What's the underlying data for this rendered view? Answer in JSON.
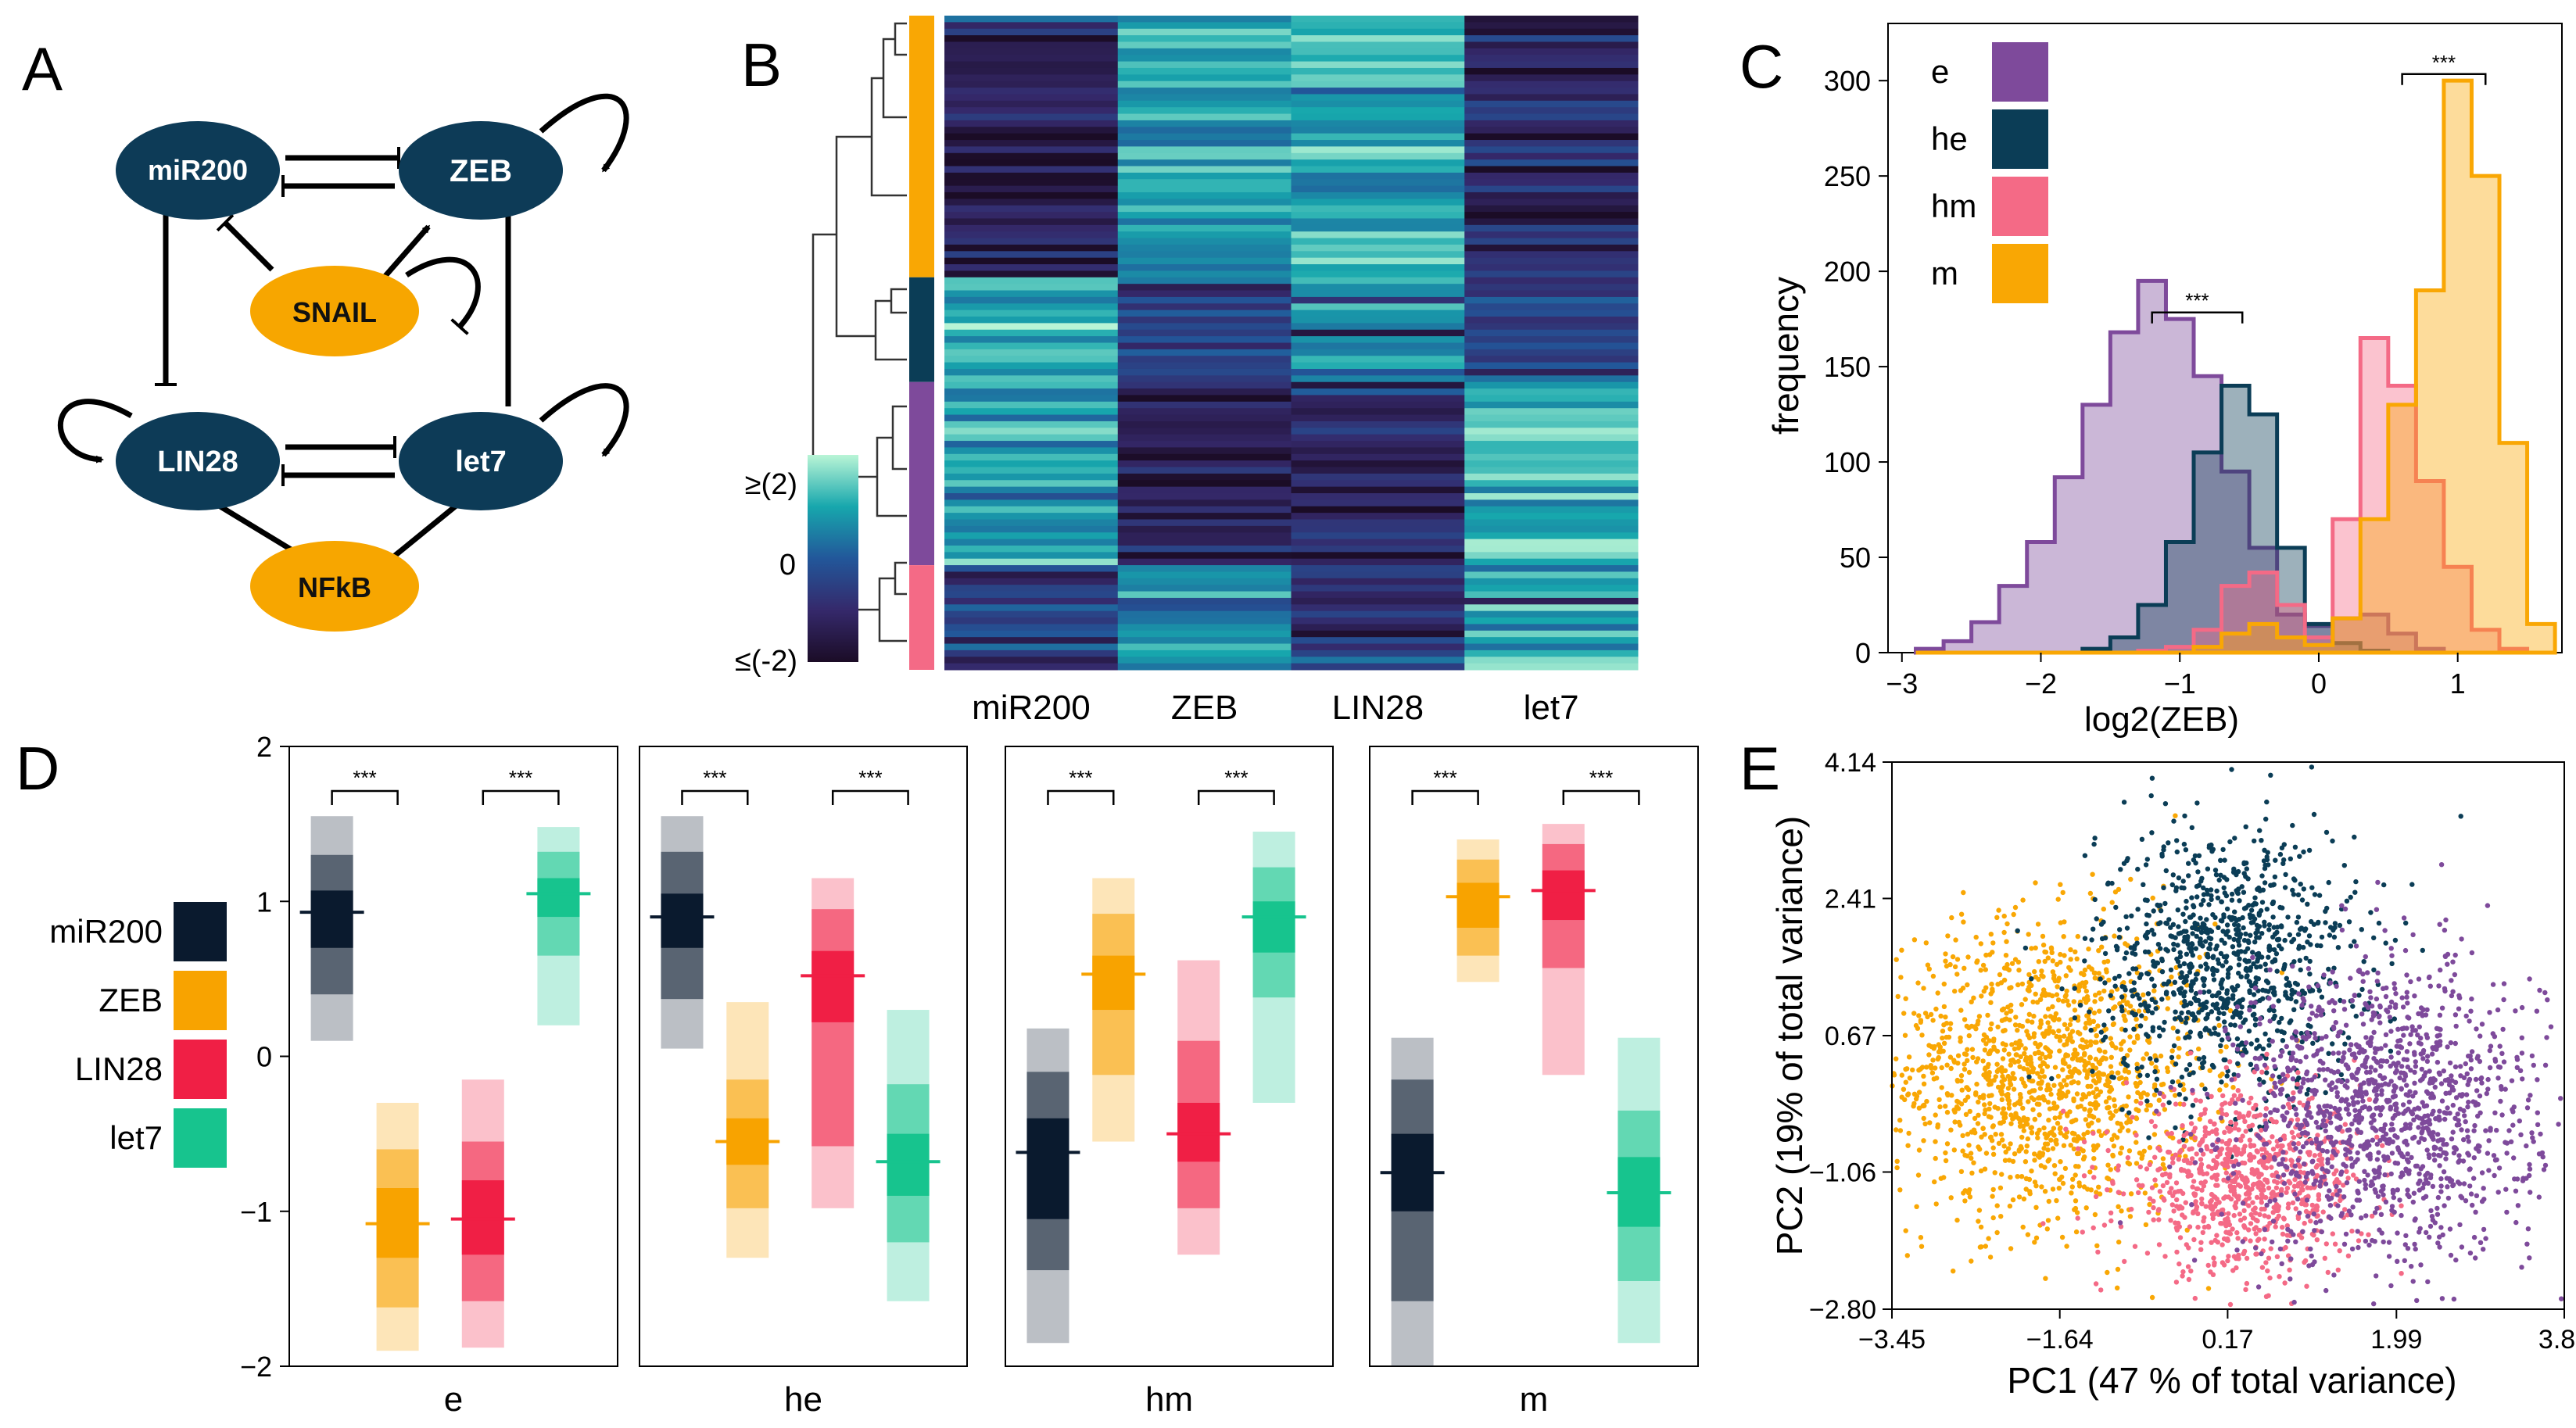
{
  "colors": {
    "e": "#7e4a9b",
    "he": "#0b3d56",
    "hm": "#f46a86",
    "m": "#f9a704",
    "node_blue": "#0d3b57",
    "node_orange": "#f7a600",
    "miR200": "#0a1a2e",
    "ZEB": "#f8a300",
    "LIN28": "#f01f45",
    "let7": "#17c48e"
  },
  "panelA": {
    "label": "A",
    "nodes": {
      "miR200": "miR200",
      "ZEB": "ZEB",
      "SNAIL": "SNAIL",
      "LIN28": "LIN28",
      "let7": "let7",
      "NFkB": "NFkB"
    }
  },
  "panelB": {
    "label": "B",
    "colorbar": {
      "top": "≥(2)",
      "mid": "0",
      "bottom": "≤(-2)"
    },
    "columns": [
      "miR200",
      "ZEB",
      "LIN28",
      "let7"
    ],
    "cluster_groups": [
      "m",
      "he",
      "e",
      "hm"
    ]
  },
  "panelC": {
    "label": "C",
    "xlabel": "log2(ZEB)",
    "ylabel": "frequency",
    "xticks": [
      "−3",
      "−2",
      "−1",
      "0",
      "1"
    ],
    "yticks": [
      "0",
      "50",
      "100",
      "150",
      "200",
      "250",
      "300"
    ],
    "legend": [
      "e",
      "he",
      "hm",
      "m"
    ],
    "sig": [
      "***",
      "***"
    ]
  },
  "panelD": {
    "label": "D",
    "yticks": [
      "2",
      "1",
      "0",
      "−1",
      "−2"
    ],
    "legend": [
      "miR200",
      "ZEB",
      "LIN28",
      "let7"
    ],
    "groups": [
      "e",
      "he",
      "hm",
      "m"
    ],
    "sig": "***"
  },
  "panelE": {
    "label": "E",
    "xlabel": "PC1 (47 % of total variance)",
    "ylabel": "PC2 (19% of total variance)",
    "xticks": [
      "−3.45",
      "−1.64",
      "0.17",
      "1.99",
      "3.80"
    ],
    "yticks": [
      "4.14",
      "2.41",
      "0.67",
      "−1.06",
      "−2.80"
    ]
  },
  "chart_data": [
    {
      "type": "histogram",
      "panel": "C",
      "title": "",
      "xlabel": "log2(ZEB)",
      "ylabel": "frequency",
      "xlim": [
        -3.1,
        1.75
      ],
      "ylim": [
        0,
        330
      ],
      "x": [
        -2.8,
        -2.6,
        -2.4,
        -2.2,
        -2.0,
        -1.8,
        -1.6,
        -1.4,
        -1.2,
        -1.0,
        -0.8,
        -0.6,
        -0.4,
        -0.2,
        0.0,
        0.2,
        0.4,
        0.6,
        0.8,
        1.0,
        1.2,
        1.4,
        1.6
      ],
      "series": [
        {
          "name": "e",
          "values": [
            2,
            6,
            16,
            35,
            58,
            92,
            130,
            168,
            195,
            175,
            145,
            95,
            55,
            20,
            14,
            18,
            20,
            10,
            2,
            0,
            0,
            0,
            0
          ]
        },
        {
          "name": "he",
          "values": [
            0,
            0,
            0,
            0,
            0,
            0,
            2,
            8,
            25,
            58,
            105,
            140,
            125,
            55,
            15,
            5,
            1,
            0,
            0,
            0,
            0,
            0,
            0
          ]
        },
        {
          "name": "hm",
          "values": [
            0,
            0,
            0,
            0,
            0,
            0,
            0,
            0,
            1,
            3,
            12,
            35,
            42,
            25,
            8,
            70,
            165,
            140,
            90,
            45,
            12,
            2,
            0
          ]
        },
        {
          "name": "m",
          "values": [
            0,
            0,
            0,
            0,
            0,
            0,
            0,
            0,
            0,
            0,
            3,
            10,
            15,
            8,
            4,
            18,
            70,
            130,
            190,
            300,
            250,
            110,
            15
          ]
        }
      ],
      "annotations": [
        "***",
        "***"
      ]
    },
    {
      "type": "boxplot",
      "panel": "D",
      "ylim": [
        -2,
        2
      ],
      "groups": [
        "e",
        "he",
        "hm",
        "m"
      ],
      "series": [
        "miR200",
        "ZEB",
        "LIN28",
        "let7"
      ],
      "stats": {
        "e": {
          "miR200": [
            0.1,
            0.4,
            0.7,
            0.93,
            1.07,
            1.3,
            1.55
          ],
          "ZEB": [
            -1.9,
            -1.62,
            -1.3,
            -1.08,
            -0.85,
            -0.6,
            -0.3
          ],
          "LIN28": [
            -1.88,
            -1.58,
            -1.28,
            -1.05,
            -0.8,
            -0.55,
            -0.15
          ],
          "let7": [
            0.2,
            0.65,
            0.9,
            1.05,
            1.15,
            1.32,
            1.48
          ]
        },
        "he": {
          "miR200": [
            0.05,
            0.37,
            0.7,
            0.9,
            1.05,
            1.32,
            1.55
          ],
          "ZEB": [
            -1.3,
            -0.98,
            -0.7,
            -0.55,
            -0.4,
            -0.15,
            0.35
          ],
          "LIN28": [
            -0.98,
            -0.58,
            0.22,
            0.52,
            0.68,
            0.95,
            1.15
          ],
          "let7": [
            -1.58,
            -1.2,
            -0.9,
            -0.68,
            -0.5,
            -0.18,
            0.3
          ],
          "sig": true
        },
        "hm": {
          "miR200": [
            -1.85,
            -1.38,
            -1.05,
            -0.62,
            -0.4,
            -0.1,
            0.18
          ],
          "ZEB": [
            -0.55,
            -0.12,
            0.3,
            0.53,
            0.65,
            0.92,
            1.15
          ],
          "LIN28": [
            -1.28,
            -0.98,
            -0.68,
            -0.5,
            -0.3,
            0.1,
            0.62
          ],
          "let7": [
            -0.3,
            0.38,
            0.67,
            0.9,
            1.0,
            1.22,
            1.45
          ]
        },
        "m": {
          "miR200": [
            -2.0,
            -1.58,
            -1.0,
            -0.75,
            -0.5,
            -0.15,
            0.12
          ],
          "ZEB": [
            0.48,
            0.65,
            0.83,
            1.03,
            1.12,
            1.27,
            1.4
          ],
          "LIN28": [
            -0.12,
            0.57,
            0.88,
            1.07,
            1.2,
            1.37,
            1.5
          ],
          "let7": [
            -1.85,
            -1.45,
            -1.1,
            -0.88,
            -0.65,
            -0.35,
            0.12
          ]
        }
      },
      "annotations": [
        "***"
      ]
    },
    {
      "type": "scatter",
      "panel": "E",
      "xlabel": "PC1 (47 % of total variance)",
      "ylabel": "PC2 (19% of total variance)",
      "xlim": [
        -3.45,
        3.8
      ],
      "ylim": [
        -2.8,
        4.14
      ],
      "clusters": [
        {
          "name": "m",
          "center": [
            -1.8,
            0.2
          ],
          "spread": [
            0.85,
            0.95
          ],
          "n": 1400
        },
        {
          "name": "he",
          "center": [
            0.15,
            1.6
          ],
          "spread": [
            0.7,
            0.85
          ],
          "n": 1000
        },
        {
          "name": "hm",
          "center": [
            0.35,
            -1.2
          ],
          "spread": [
            0.65,
            0.55
          ],
          "n": 850
        },
        {
          "name": "e",
          "center": [
            1.9,
            -0.3
          ],
          "spread": [
            0.8,
            0.95
          ],
          "n": 1300
        }
      ]
    },
    {
      "type": "heatmap",
      "panel": "B",
      "columns": [
        "miR200",
        "ZEB",
        "LIN28",
        "let7"
      ],
      "scale": [
        -2,
        2
      ],
      "row_groups": [
        {
          "name": "m",
          "rows": 40,
          "means": [
            -1.2,
            0.9,
            1.0,
            -1.1
          ]
        },
        {
          "name": "he",
          "rows": 16,
          "means": [
            1.0,
            -0.4,
            0.6,
            -0.5
          ]
        },
        {
          "name": "e",
          "rows": 28,
          "means": [
            1.0,
            -1.2,
            -1.2,
            1.1
          ]
        },
        {
          "name": "hm",
          "rows": 16,
          "means": [
            -0.6,
            0.6,
            -0.5,
            1.0
          ]
        }
      ]
    }
  ]
}
